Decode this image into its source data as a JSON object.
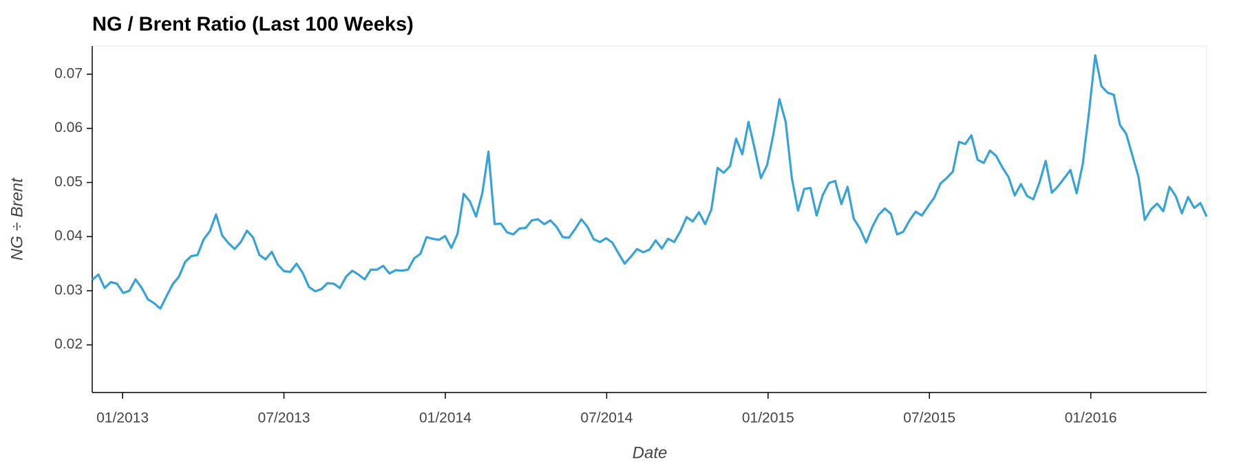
{
  "chart_data": {
    "type": "line",
    "title": "NG / Brent Ratio (Last 100 Weeks)",
    "x_label": "Date",
    "y_label": "NG ÷ Brent",
    "xlim": [
      2012.906,
      2016.359
    ],
    "xticks": [
      {
        "value": 2013,
        "label": "01/2013"
      },
      {
        "value": 2013.5,
        "label": "07/2013"
      },
      {
        "value": 2014,
        "label": "01/2014"
      },
      {
        "value": 2014.5,
        "label": "07/2014"
      },
      {
        "value": 2015,
        "label": "01/2015"
      },
      {
        "value": 2015.5,
        "label": "07/2015"
      },
      {
        "value": 2016,
        "label": "01/2016"
      }
    ],
    "ylim": [
      0.0112,
      0.0752
    ],
    "yticks": [
      0.02,
      0.03,
      0.04,
      0.05,
      0.06,
      0.07
    ],
    "series": [
      {
        "name": "NG / Brent",
        "color": "#36a2da",
        "values": [
          0.032,
          0.033,
          0.0305,
          0.0316,
          0.0313,
          0.0296,
          0.03,
          0.0321,
          0.0305,
          0.0284,
          0.0277,
          0.0267,
          0.029,
          0.0312,
          0.0326,
          0.0353,
          0.0364,
          0.0366,
          0.0395,
          0.041,
          0.0441,
          0.0402,
          0.0388,
          0.0377,
          0.039,
          0.0411,
          0.0398,
          0.0366,
          0.0358,
          0.0372,
          0.0348,
          0.0336,
          0.0335,
          0.035,
          0.0333,
          0.0307,
          0.0299,
          0.0303,
          0.0314,
          0.0313,
          0.0305,
          0.0326,
          0.0337,
          0.033,
          0.0321,
          0.0339,
          0.0339,
          0.0346,
          0.0332,
          0.0338,
          0.0337,
          0.0339,
          0.036,
          0.0368,
          0.0399,
          0.0396,
          0.0394,
          0.0401,
          0.0379,
          0.0405,
          0.0479,
          0.0465,
          0.0437,
          0.048,
          0.0557,
          0.0423,
          0.0424,
          0.0408,
          0.0404,
          0.0415,
          0.0416,
          0.043,
          0.0432,
          0.0423,
          0.043,
          0.0418,
          0.0399,
          0.0398,
          0.0414,
          0.0432,
          0.0418,
          0.0395,
          0.039,
          0.0397,
          0.0389,
          0.0369,
          0.035,
          0.0363,
          0.0377,
          0.0371,
          0.0376,
          0.0393,
          0.0378,
          0.0396,
          0.039,
          0.041,
          0.0436,
          0.0428,
          0.0445,
          0.0423,
          0.045,
          0.0527,
          0.0518,
          0.053,
          0.0581,
          0.0552,
          0.0612,
          0.0562,
          0.0508,
          0.0532,
          0.0588,
          0.0654,
          0.0612,
          0.0508,
          0.0448,
          0.0488,
          0.049,
          0.0439,
          0.0477,
          0.0499,
          0.0503,
          0.046,
          0.0492,
          0.0433,
          0.0415,
          0.0389,
          0.0418,
          0.044,
          0.0452,
          0.0442,
          0.0404,
          0.0409,
          0.043,
          0.0446,
          0.0439,
          0.0456,
          0.0472,
          0.0498,
          0.0508,
          0.052,
          0.0575,
          0.0571,
          0.0587,
          0.0542,
          0.0536,
          0.0559,
          0.0549,
          0.0528,
          0.051,
          0.0476,
          0.0497,
          0.0475,
          0.0469,
          0.05,
          0.054,
          0.0481,
          0.0493,
          0.0508,
          0.0523,
          0.048,
          0.0535,
          0.063,
          0.0735,
          0.0678,
          0.0666,
          0.0662,
          0.0606,
          0.059,
          0.055,
          0.051,
          0.0431,
          0.045,
          0.0461,
          0.0447,
          0.0492,
          0.0475,
          0.0443,
          0.0473,
          0.0453,
          0.0462,
          0.0437
        ]
      }
    ]
  }
}
